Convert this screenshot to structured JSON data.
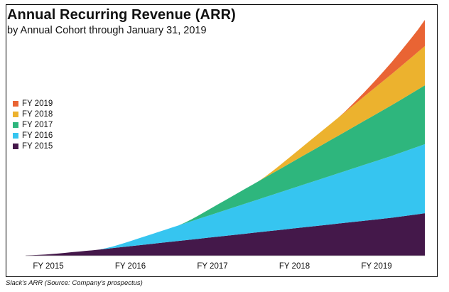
{
  "title": "Annual Recurring Revenue (ARR)",
  "subtitle": "by Annual Cohort through January 31, 2019",
  "caption": "Slack's ARR (Source: Company's prospectus)",
  "chart_data": {
    "type": "area",
    "stacked": true,
    "x_tick_labels": [
      "FY 2015",
      "FY 2016",
      "FY 2017",
      "FY 2018",
      "FY 2019"
    ],
    "x": [
      0,
      1,
      2,
      3,
      4,
      5,
      6,
      7,
      8,
      9,
      10,
      11,
      12,
      13,
      14,
      15,
      16,
      17,
      18,
      19,
      20,
      21,
      22,
      23,
      24,
      25,
      26,
      27,
      28,
      29,
      30,
      31,
      32,
      33,
      34,
      35,
      36,
      37,
      38,
      39,
      40,
      41,
      42,
      43,
      44,
      45,
      46,
      47,
      48,
      49,
      50,
      51,
      52,
      53,
      54,
      55,
      56,
      57,
      58,
      59,
      60
    ],
    "y_axis_shown": false,
    "legend_position": "left",
    "series": [
      {
        "name": "FY 2015",
        "color": "#44184a",
        "values": [
          0.2,
          0.3,
          0.5,
          0.7,
          1,
          1.3,
          1.6,
          2,
          2.3,
          2.7,
          3,
          3.4,
          3.8,
          4.2,
          4.6,
          5,
          5.4,
          5.8,
          6.2,
          6.6,
          7,
          7.4,
          7.8,
          8.2,
          8.6,
          9,
          9.4,
          9.8,
          10.2,
          10.6,
          11,
          11.4,
          11.8,
          12.2,
          12.6,
          13,
          13.4,
          13.8,
          14.2,
          14.6,
          15,
          15.4,
          15.8,
          16.2,
          16.6,
          17,
          17.4,
          17.8,
          18.2,
          18.6,
          19,
          19.4,
          19.8,
          20.2,
          20.6,
          21,
          21.5,
          22,
          22.5,
          23,
          23.5
        ]
      },
      {
        "name": "FY 2016",
        "color": "#36c5f0",
        "values": [
          0,
          0,
          0,
          0,
          0,
          0,
          0,
          0,
          0,
          0,
          0,
          0,
          0.3,
          0.8,
          1.5,
          2.2,
          3,
          3.8,
          4.6,
          5.4,
          6.2,
          7,
          7.8,
          8.6,
          9.4,
          10.2,
          11,
          11.8,
          12.6,
          13.4,
          14.2,
          15,
          15.8,
          16.6,
          17.4,
          18.2,
          19,
          19.8,
          20.6,
          21.4,
          22.2,
          23,
          23.8,
          24.6,
          25.4,
          26.2,
          27,
          27.8,
          28.6,
          29.4,
          30.2,
          31,
          31.8,
          32.6,
          33.4,
          34.2,
          35,
          35.8,
          36.6,
          37.4,
          38.2
        ]
      },
      {
        "name": "FY 2017",
        "color": "#2eb67d",
        "values": [
          0,
          0,
          0,
          0,
          0,
          0,
          0,
          0,
          0,
          0,
          0,
          0,
          0,
          0,
          0,
          0,
          0,
          0,
          0,
          0,
          0,
          0,
          0,
          0,
          0.4,
          1.1,
          1.9,
          2.8,
          3.7,
          4.6,
          5.5,
          6.4,
          7.3,
          8.2,
          9.1,
          10,
          10.9,
          11.8,
          12.7,
          13.6,
          14.5,
          15.4,
          16.3,
          17.2,
          18.1,
          19,
          19.9,
          20.8,
          21.7,
          22.6,
          23.5,
          24.4,
          25.3,
          26.2,
          27.1,
          28,
          28.9,
          29.8,
          30.7,
          31.6,
          32.5
        ]
      },
      {
        "name": "FY 2018",
        "color": "#ecb22e",
        "values": [
          0,
          0,
          0,
          0,
          0,
          0,
          0,
          0,
          0,
          0,
          0,
          0,
          0,
          0,
          0,
          0,
          0,
          0,
          0,
          0,
          0,
          0,
          0,
          0,
          0,
          0,
          0,
          0,
          0,
          0,
          0,
          0,
          0,
          0,
          0,
          0,
          0.4,
          1.1,
          1.9,
          2.8,
          3.7,
          4.6,
          5.5,
          6.4,
          7.3,
          8.2,
          9.1,
          10,
          10.9,
          11.8,
          12.7,
          13.6,
          14.5,
          15.4,
          16.3,
          17.2,
          18.1,
          19,
          19.9,
          20.8,
          21.7
        ]
      },
      {
        "name": "FY 2019",
        "color": "#e96434",
        "values": [
          0,
          0,
          0,
          0,
          0,
          0,
          0,
          0,
          0,
          0,
          0,
          0,
          0,
          0,
          0,
          0,
          0,
          0,
          0,
          0,
          0,
          0,
          0,
          0,
          0,
          0,
          0,
          0,
          0,
          0,
          0,
          0,
          0,
          0,
          0,
          0,
          0,
          0,
          0,
          0,
          0,
          0,
          0,
          0,
          0,
          0,
          0,
          0,
          0.3,
          0.9,
          1.6,
          2.4,
          3.3,
          4.3,
          5.4,
          6.6,
          7.9,
          9.3,
          10.8,
          12.4,
          14.5
        ]
      }
    ]
  }
}
